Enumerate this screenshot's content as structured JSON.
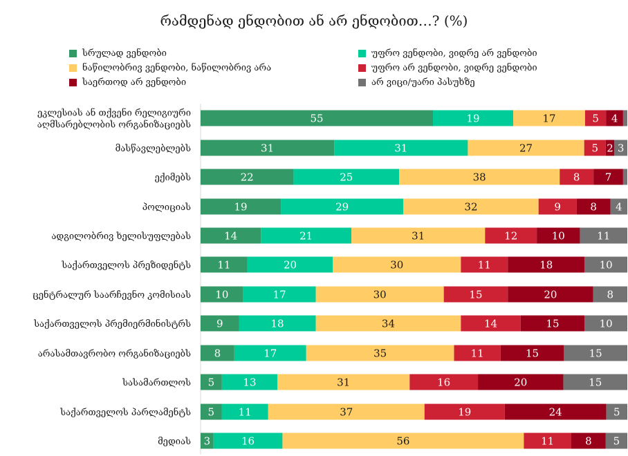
{
  "chart_data": {
    "type": "bar",
    "orientation": "horizontal",
    "stacked": true,
    "title": "რამდენად ენდობით ან არ ენდობით…? (%)",
    "xlabel": "",
    "ylabel": "",
    "xlim": [
      0,
      100
    ],
    "legend_position": "top",
    "grid": false,
    "categories": [
      "ეკლესიას ან თქვენი რელიგიური აღმსარებლობის ორგანიზაციებს",
      "მასწავლებლებს",
      "ექიმებს",
      "პოლიციას",
      "ადგილობრივ ხელისუფლებას",
      "საქართველოს პრეზიდენტს",
      "ცენტრალურ საარჩევნო კომისიას",
      "საქართველოს პრემიერმინისტრს",
      "არასამთავრობო ორგანიზაციებს",
      "სასამართლოს",
      "საქართველოს პარლამენტს",
      "მედიას"
    ],
    "series": [
      {
        "name": "სრულად ვენდობი",
        "color": "#339966",
        "values": [
          55,
          31,
          22,
          19,
          14,
          11,
          10,
          9,
          8,
          5,
          5,
          3
        ]
      },
      {
        "name": "უფრო ვენდობი, ვიდრე არ ვენდობი",
        "color": "#00cc99",
        "values": [
          19,
          31,
          25,
          29,
          21,
          20,
          17,
          18,
          17,
          13,
          11,
          16
        ]
      },
      {
        "name": "ნაწილობრივ ვენდობი, ნაწილობრივ არა",
        "color": "#ffcc66",
        "values": [
          17,
          27,
          38,
          32,
          31,
          30,
          30,
          34,
          35,
          31,
          37,
          56
        ]
      },
      {
        "name": "უფრო არ ვენდობი, ვიდრე ვენდობი",
        "color": "#cc2233",
        "values": [
          5,
          5,
          8,
          9,
          12,
          11,
          15,
          14,
          11,
          16,
          19,
          11
        ]
      },
      {
        "name": "საერთოდ არ ვენდობი",
        "color": "#99001a",
        "values": [
          4,
          2,
          7,
          8,
          10,
          18,
          20,
          15,
          15,
          20,
          24,
          8
        ]
      },
      {
        "name": "არ ვიცი/უარი პასუხზე",
        "color": "#737373",
        "values": [
          1,
          3,
          1,
          4,
          11,
          10,
          8,
          10,
          15,
          15,
          5,
          5
        ]
      }
    ]
  }
}
